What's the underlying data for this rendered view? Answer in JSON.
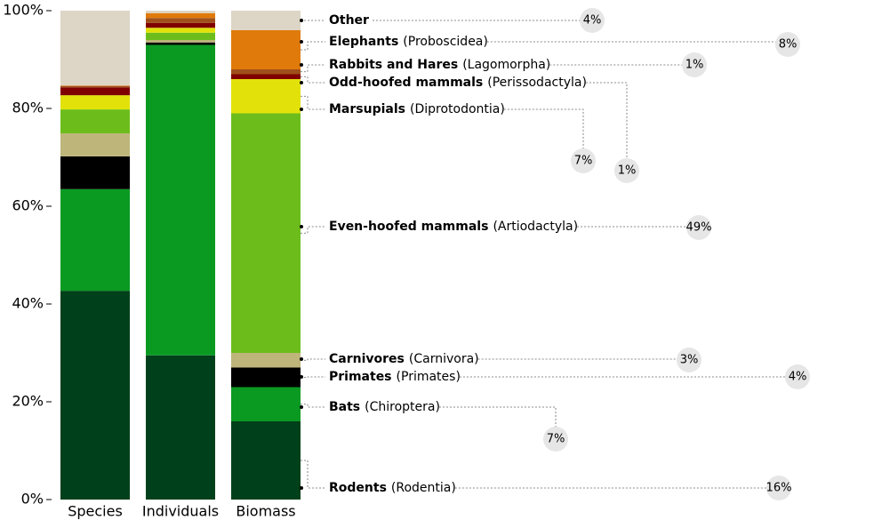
{
  "chart_data": {
    "type": "stacked-bar",
    "categories": [
      "Species",
      "Individuals",
      "Biomass"
    ],
    "ylim": [
      0,
      100
    ],
    "yticks": [
      {
        "value": 0,
        "label": "0%"
      },
      {
        "value": 20,
        "label": "20%"
      },
      {
        "value": 40,
        "label": "40%"
      },
      {
        "value": 60,
        "label": "60%"
      },
      {
        "value": 80,
        "label": "80%"
      },
      {
        "value": 100,
        "label": "100%"
      }
    ],
    "series": [
      {
        "name": "Rodents",
        "latin": "(Rodentia)",
        "color": "#00401a",
        "values": [
          42.7,
          29.5,
          16
        ],
        "value_labels": [
          null,
          null,
          "16%"
        ]
      },
      {
        "name": "Bats",
        "latin": "(Chiroptera)",
        "color": "#0a9a22",
        "values": [
          20.8,
          63.5,
          7
        ],
        "value_labels": [
          null,
          null,
          "7%"
        ]
      },
      {
        "name": "Primates",
        "latin": "(Primates)",
        "color": "#000000",
        "values": [
          6.7,
          0.5,
          4
        ],
        "value_labels": [
          null,
          null,
          "4%"
        ]
      },
      {
        "name": "Carnivores",
        "latin": "(Carnivora)",
        "color": "#bdb57a",
        "values": [
          4.7,
          0.5,
          3
        ],
        "value_labels": [
          null,
          null,
          "3%"
        ]
      },
      {
        "name": "Even-hoofed mammals",
        "latin": "(Artiodactyla)",
        "color": "#6cbd1c",
        "values": [
          4.9,
          1.5,
          49
        ],
        "value_labels": [
          null,
          null,
          "49%"
        ]
      },
      {
        "name": "Marsupials",
        "latin": "(Diprotodontia)",
        "color": "#e2e20a",
        "values": [
          2.9,
          1,
          7
        ],
        "value_labels": [
          null,
          null,
          "7%"
        ]
      },
      {
        "name": "Odd-hoofed mammals",
        "latin": "(Perissodactyla)",
        "color": "#800000",
        "values": [
          1.6,
          1,
          1
        ],
        "value_labels": [
          null,
          null,
          "1%"
        ]
      },
      {
        "name": "Rabbits and Hares",
        "latin": "(Lagomorpha)",
        "color": "#a0501a",
        "values": [
          0.3,
          1,
          1
        ],
        "value_labels": [
          null,
          null,
          "1%"
        ]
      },
      {
        "name": "Elephants",
        "latin": "(Proboscidea)",
        "color": "#e07a0a",
        "values": [
          0.1,
          1,
          8
        ],
        "value_labels": [
          null,
          null,
          "8%"
        ]
      },
      {
        "name": "Other",
        "color": "#ddd5c5",
        "values": [
          15.3,
          0.5,
          4
        ],
        "value_labels": [
          null,
          null,
          "4%"
        ]
      }
    ]
  }
}
